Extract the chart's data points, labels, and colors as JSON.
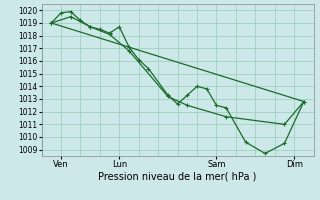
{
  "bg_color": "#cce8e8",
  "grid_color": "#99ccb8",
  "line_color": "#1a6b2a",
  "marker_color": "#1a6b2a",
  "xlabel": "Pression niveau de la mer( hPa )",
  "ylim": [
    1008.5,
    1020.5
  ],
  "yticks": [
    1009,
    1010,
    1011,
    1012,
    1013,
    1014,
    1015,
    1016,
    1017,
    1018,
    1019,
    1020
  ],
  "xtick_labels": [
    "Ven",
    "Lun",
    "Sam",
    "Dim"
  ],
  "xtick_positions": [
    1,
    4,
    9,
    13
  ],
  "xlim": [
    0,
    14
  ],
  "n_vcols": 14,
  "series1_x": [
    0.5,
    1.0,
    1.5,
    2.0,
    2.5,
    3.0,
    3.5,
    4.0,
    4.5,
    5.0,
    5.5,
    6.5,
    7.0,
    7.5,
    8.0,
    8.5,
    9.0,
    9.5,
    10.5,
    11.5,
    12.5,
    13.5
  ],
  "series1_y": [
    1019.0,
    1019.8,
    1019.9,
    1019.2,
    1018.7,
    1018.5,
    1018.2,
    1018.7,
    1017.1,
    1016.1,
    1015.4,
    1013.3,
    1012.6,
    1013.3,
    1014.0,
    1013.8,
    1012.5,
    1012.3,
    1009.6,
    1008.7,
    1009.5,
    1012.8
  ],
  "series2_x": [
    0.5,
    1.5,
    2.5,
    3.5,
    4.5,
    6.5,
    7.5,
    9.5,
    12.5,
    13.5
  ],
  "series2_y": [
    1019.0,
    1019.5,
    1018.7,
    1018.1,
    1016.8,
    1013.2,
    1012.5,
    1011.6,
    1011.0,
    1012.8
  ],
  "series3_x": [
    0.5,
    13.5
  ],
  "series3_y": [
    1019.0,
    1012.8
  ]
}
